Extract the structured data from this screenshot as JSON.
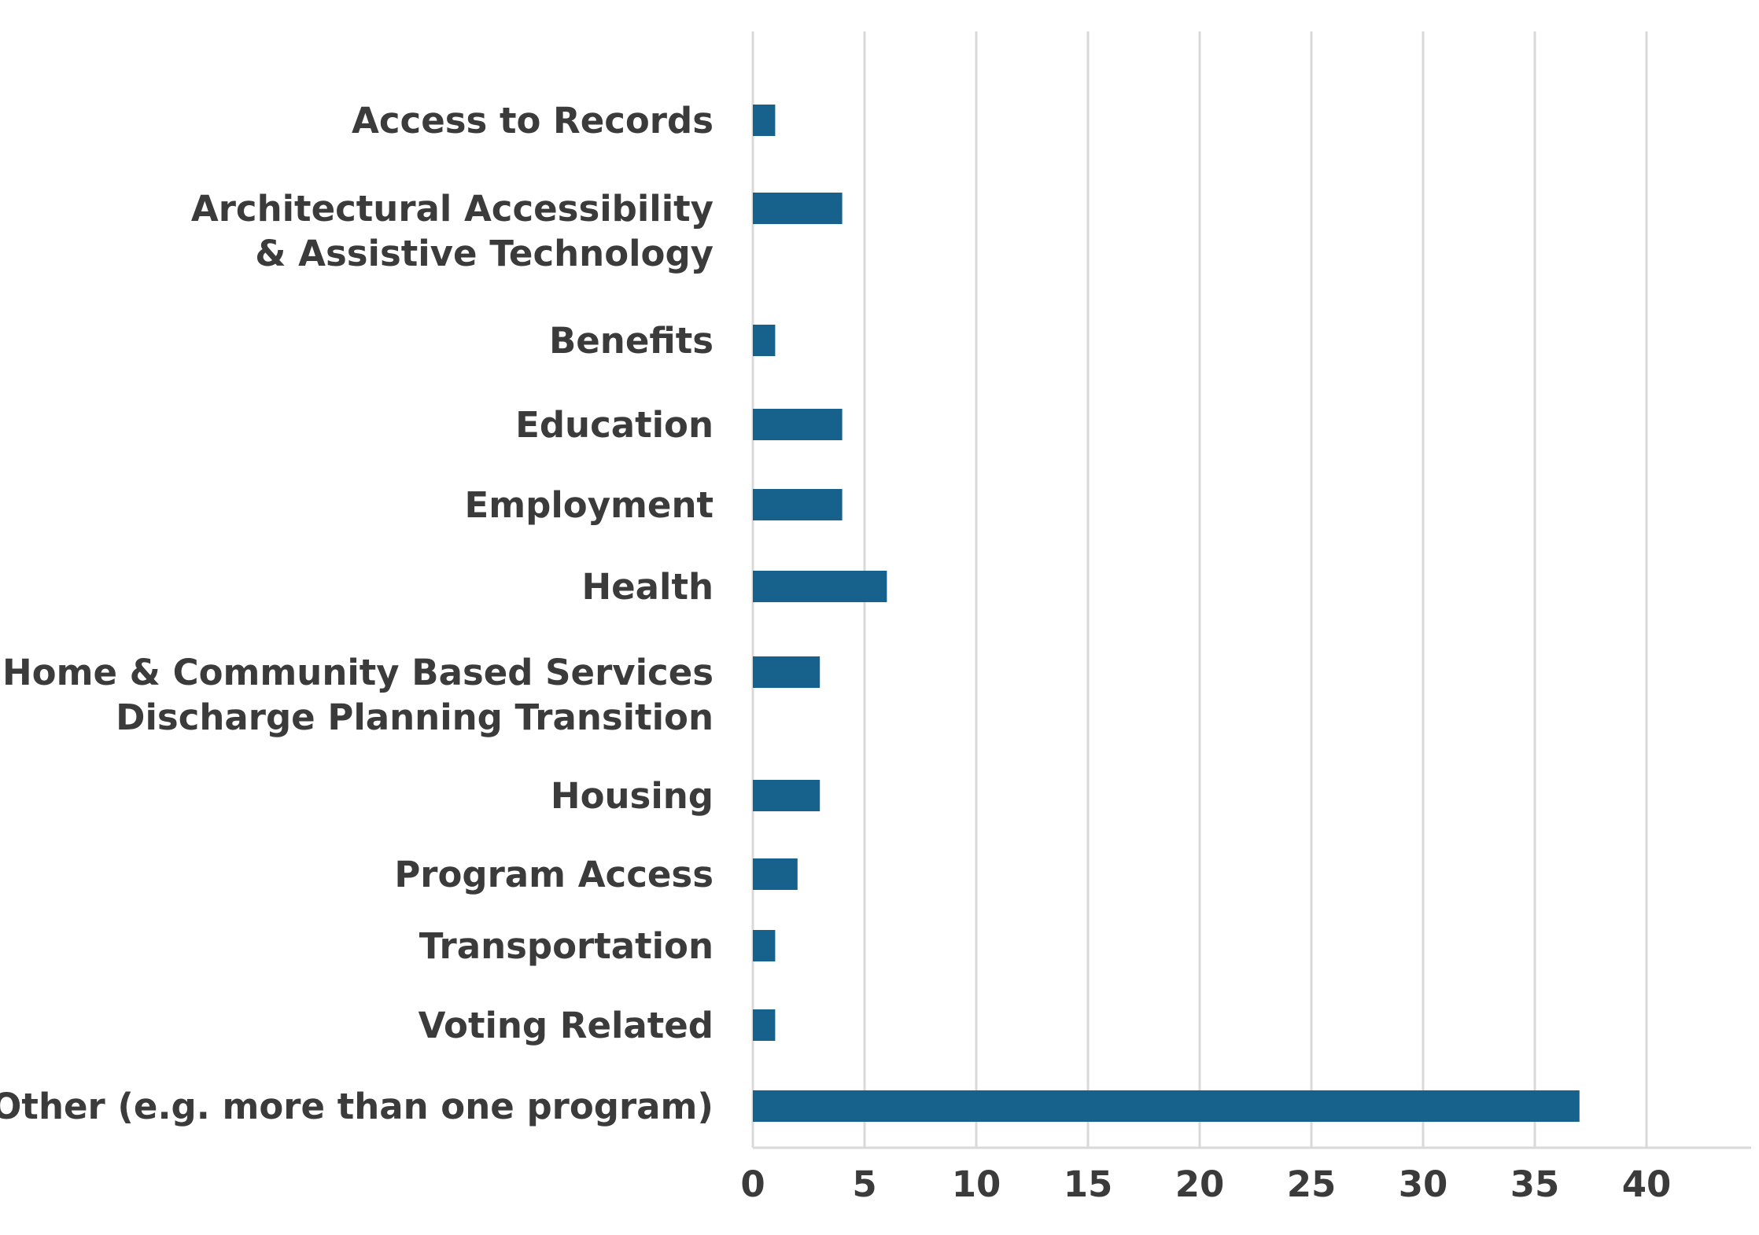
{
  "chart_data": {
    "type": "bar",
    "orientation": "horizontal",
    "categories": [
      "Access to Records",
      "Architectural Accessibility\n& Assistive Technology",
      "Benefits",
      "Education",
      "Employment",
      "Health",
      "Home & Community Based Services\nDischarge Planning Transition",
      "Housing",
      "Program Access",
      "Transportation",
      "Voting Related",
      "Other (e.g. more than one program)"
    ],
    "values": [
      1,
      4,
      1,
      4,
      4,
      6,
      3,
      3,
      2,
      1,
      1,
      37
    ],
    "xlim": [
      0,
      45
    ],
    "xticks": [
      "0",
      "5",
      "10",
      "15",
      "20",
      "25",
      "30",
      "35",
      "40"
    ],
    "grid": "vertical",
    "bar_color": "#17628c",
    "text_color": "#3b3b3b",
    "grid_color": "#d9d9d9"
  }
}
